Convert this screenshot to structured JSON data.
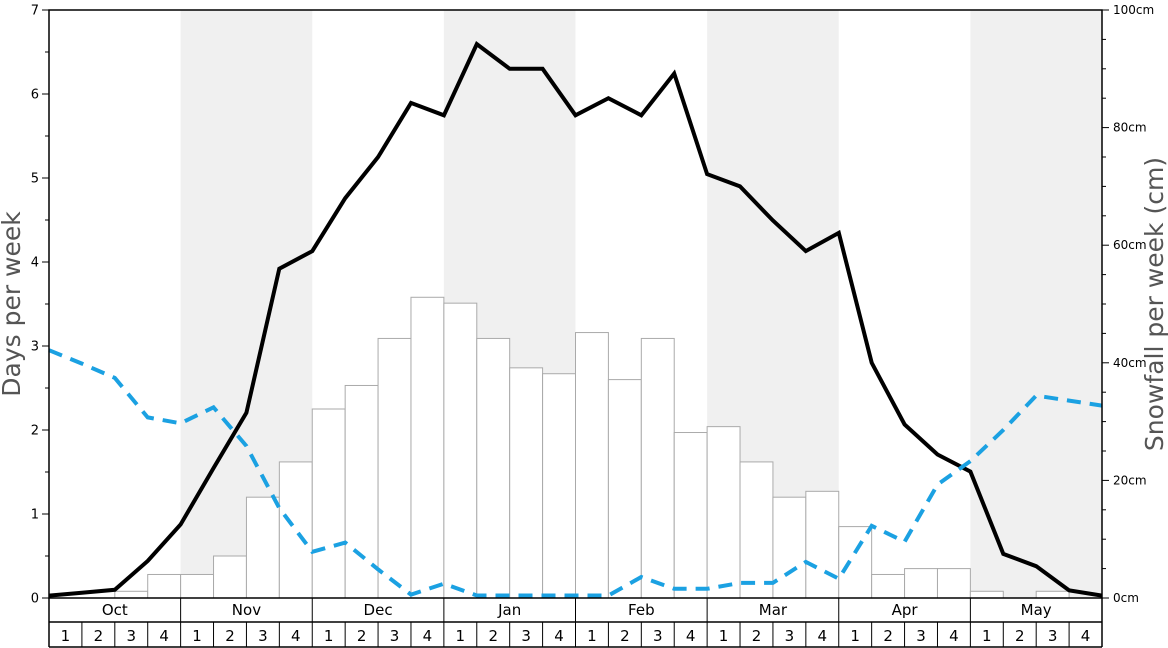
{
  "chart_data": {
    "type": "bar+line",
    "title": "",
    "ylabel_left": "Days per week",
    "ylabel_right": "Snowfall per week (cm)",
    "ylim_left": [
      0,
      7
    ],
    "ylim_right": [
      0,
      100
    ],
    "y_ticks_left": [
      "0",
      "1",
      "2",
      "3",
      "4",
      "5",
      "6",
      "7"
    ],
    "y_ticks_right": [
      "0cm",
      "20cm",
      "40cm",
      "60cm",
      "80cm",
      "100cm"
    ],
    "months": [
      "Oct",
      "Nov",
      "Dec",
      "Jan",
      "Feb",
      "Mar",
      "Apr",
      "May"
    ],
    "weeks": [
      "1",
      "2",
      "3",
      "4"
    ],
    "shaded_months": [
      "Nov",
      "Jan",
      "Mar",
      "May"
    ],
    "colors": {
      "bars_fill": "#ffffff",
      "bars_stroke": "#aaaaaa",
      "snow_days_line": "#000000",
      "dashed_line": "#1ba1e2",
      "shade": "#f0f0f0"
    },
    "series": [
      {
        "name": "",
        "kind": "bar",
        "axis": "left",
        "values": [
          0,
          0,
          0.08,
          0.28,
          0.28,
          0.5,
          1.2,
          1.62,
          2.25,
          2.53,
          3.09,
          3.58,
          3.51,
          3.09,
          2.74,
          2.67,
          3.16,
          2.6,
          3.09,
          1.97,
          2.04,
          1.62,
          1.2,
          1.27,
          0.85,
          0.28,
          0.35,
          0.35,
          0.08,
          0,
          0.08,
          0
        ]
      },
      {
        "name": "",
        "kind": "line",
        "axis": "right",
        "values": [
          0.4,
          0.9,
          1.4,
          6.3,
          12.5,
          22.1,
          31.5,
          56.0,
          59.0,
          68.0,
          75.0,
          84.2,
          82.1,
          94.2,
          90.0,
          90.0,
          82.1,
          85.0,
          82.1,
          89.2,
          72.1,
          70.0,
          64.2,
          59.0,
          62.1,
          40.0,
          29.5,
          24.4,
          21.5,
          7.5,
          5.4,
          1.3,
          0.4
        ]
      },
      {
        "name": "",
        "kind": "dashed-line",
        "axis": "left",
        "values": [
          2.95,
          2.79,
          2.62,
          2.15,
          2.08,
          2.27,
          1.81,
          1.07,
          0.55,
          0.66,
          0.34,
          0.04,
          0.17,
          0.03,
          0.03,
          0.03,
          0.03,
          0.03,
          0.25,
          0.11,
          0.11,
          0.18,
          0.18,
          0.43,
          0.23,
          0.86,
          0.67,
          1.35,
          1.63,
          2.0,
          2.41,
          2.35,
          2.29
        ]
      }
    ]
  }
}
